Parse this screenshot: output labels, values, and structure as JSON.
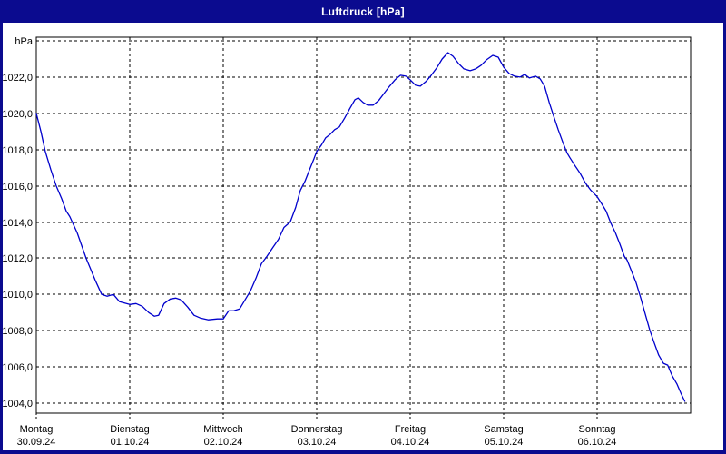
{
  "window": {
    "title": "Luftdruck [hPa]"
  },
  "colors": {
    "frame": "#0b0b8f",
    "title_text": "#ffffff",
    "plot_background": "#ffffff",
    "grid": "#000000",
    "axis_text": "#000000",
    "curve": "#0000cc"
  },
  "chart_data": {
    "type": "line",
    "title": "Luftdruck [hPa]",
    "unit": "hPa",
    "grid": "dashed",
    "legend": "none",
    "ylim_gridlines": [
      1004,
      1024
    ],
    "y_ticks": [
      {
        "value": 1024,
        "label": "hPa"
      },
      {
        "value": 1022,
        "label": "1022,0"
      },
      {
        "value": 1020,
        "label": "1020,0"
      },
      {
        "value": 1018,
        "label": "1018,0"
      },
      {
        "value": 1016,
        "label": "1016,0"
      },
      {
        "value": 1014,
        "label": "1014,0"
      },
      {
        "value": 1012,
        "label": "1012,0"
      },
      {
        "value": 1010,
        "label": "1010,0"
      },
      {
        "value": 1008,
        "label": "1008,0"
      },
      {
        "value": 1006,
        "label": "1006,0"
      },
      {
        "value": 1004,
        "label": "1004,0"
      }
    ],
    "x_days": [
      {
        "name": "Montag",
        "date": "30.09.24"
      },
      {
        "name": "Dienstag",
        "date": "01.10.24"
      },
      {
        "name": "Mittwoch",
        "date": "02.10.24"
      },
      {
        "name": "Donnerstag",
        "date": "03.10.24"
      },
      {
        "name": "Freitag",
        "date": "04.10.24"
      },
      {
        "name": "Samstag",
        "date": "05.10.24"
      },
      {
        "name": "Sonntag",
        "date": "06.10.24"
      }
    ],
    "x_axis_note": "hours since Montag 00:00, 7 days total (168 h)",
    "series": [
      {
        "name": "Luftdruck",
        "unit": "hPa",
        "points": [
          [
            0,
            1020.0
          ],
          [
            1.2,
            1019.0
          ],
          [
            2.3,
            1017.9
          ],
          [
            3.7,
            1016.9
          ],
          [
            5.1,
            1016.0
          ],
          [
            6.5,
            1015.3
          ],
          [
            7.7,
            1014.6
          ],
          [
            8.6,
            1014.3
          ],
          [
            10.5,
            1013.4
          ],
          [
            12.8,
            1012.0
          ],
          [
            15.1,
            1010.8
          ],
          [
            16.8,
            1010.0
          ],
          [
            18.2,
            1009.9
          ],
          [
            19.8,
            1010.0
          ],
          [
            21.4,
            1009.6
          ],
          [
            24,
            1009.45
          ],
          [
            25.6,
            1009.5
          ],
          [
            27.2,
            1009.35
          ],
          [
            28.9,
            1009.0
          ],
          [
            30.3,
            1008.8
          ],
          [
            31.4,
            1008.85
          ],
          [
            32.8,
            1009.5
          ],
          [
            34.4,
            1009.75
          ],
          [
            35.8,
            1009.8
          ],
          [
            37.2,
            1009.7
          ],
          [
            38.9,
            1009.3
          ],
          [
            40.5,
            1008.85
          ],
          [
            42.1,
            1008.7
          ],
          [
            44.2,
            1008.6
          ],
          [
            46.5,
            1008.65
          ],
          [
            48,
            1008.65
          ],
          [
            49.4,
            1009.1
          ],
          [
            50.7,
            1009.1
          ],
          [
            52.2,
            1009.2
          ],
          [
            53.6,
            1009.7
          ],
          [
            55,
            1010.2
          ],
          [
            56.4,
            1010.9
          ],
          [
            57.8,
            1011.7
          ],
          [
            59.2,
            1012.1
          ],
          [
            60.6,
            1012.55
          ],
          [
            62.2,
            1013.05
          ],
          [
            63.6,
            1013.7
          ],
          [
            65.2,
            1014.0
          ],
          [
            66.6,
            1014.8
          ],
          [
            67.8,
            1015.75
          ],
          [
            69,
            1016.25
          ],
          [
            70.1,
            1016.85
          ],
          [
            71.3,
            1017.5
          ],
          [
            72,
            1017.9
          ],
          [
            73.2,
            1018.25
          ],
          [
            74.3,
            1018.65
          ],
          [
            75.5,
            1018.85
          ],
          [
            76.6,
            1019.1
          ],
          [
            77.8,
            1019.25
          ],
          [
            79.2,
            1019.75
          ],
          [
            80.6,
            1020.3
          ],
          [
            81.8,
            1020.75
          ],
          [
            82.7,
            1020.85
          ],
          [
            83.9,
            1020.6
          ],
          [
            85.1,
            1020.45
          ],
          [
            86.5,
            1020.45
          ],
          [
            87.9,
            1020.7
          ],
          [
            89.3,
            1021.1
          ],
          [
            90.7,
            1021.5
          ],
          [
            92.1,
            1021.85
          ],
          [
            93.5,
            1022.1
          ],
          [
            94.9,
            1022.05
          ],
          [
            96,
            1021.85
          ],
          [
            97.4,
            1021.55
          ],
          [
            98.6,
            1021.5
          ],
          [
            100,
            1021.75
          ],
          [
            101.4,
            1022.1
          ],
          [
            102.8,
            1022.5
          ],
          [
            104.2,
            1023.0
          ],
          [
            105.7,
            1023.35
          ],
          [
            107,
            1023.15
          ],
          [
            108.4,
            1022.75
          ],
          [
            109.8,
            1022.45
          ],
          [
            111.4,
            1022.35
          ],
          [
            112.8,
            1022.45
          ],
          [
            114.2,
            1022.65
          ],
          [
            115.6,
            1022.95
          ],
          [
            117.2,
            1023.2
          ],
          [
            118.6,
            1023.1
          ],
          [
            120,
            1022.55
          ],
          [
            121.4,
            1022.2
          ],
          [
            122.8,
            1022.05
          ],
          [
            124.2,
            1022.0
          ],
          [
            125.4,
            1022.15
          ],
          [
            126.6,
            1021.95
          ],
          [
            128.2,
            1022.05
          ],
          [
            129.4,
            1021.9
          ],
          [
            130.5,
            1021.5
          ],
          [
            131.7,
            1020.6
          ],
          [
            132.9,
            1019.8
          ],
          [
            134,
            1019.1
          ],
          [
            135.2,
            1018.4
          ],
          [
            136.3,
            1017.8
          ],
          [
            137,
            1017.55
          ],
          [
            138.2,
            1017.15
          ],
          [
            139.6,
            1016.7
          ],
          [
            141,
            1016.15
          ],
          [
            142.4,
            1015.75
          ],
          [
            144,
            1015.4
          ],
          [
            145.2,
            1015.0
          ],
          [
            146.3,
            1014.6
          ],
          [
            147.5,
            1013.95
          ],
          [
            148.7,
            1013.4
          ],
          [
            149.8,
            1012.8
          ],
          [
            151,
            1012.1
          ],
          [
            151.7,
            1011.9
          ],
          [
            152.8,
            1011.3
          ],
          [
            154,
            1010.65
          ],
          [
            155.2,
            1009.8
          ],
          [
            156.3,
            1008.95
          ],
          [
            157.5,
            1008.05
          ],
          [
            158.7,
            1007.3
          ],
          [
            159.8,
            1006.65
          ],
          [
            161,
            1006.2
          ],
          [
            162.1,
            1006.1
          ],
          [
            163.3,
            1005.5
          ],
          [
            164.5,
            1005.05
          ],
          [
            165.6,
            1004.5
          ],
          [
            166.5,
            1004.1
          ]
        ]
      }
    ]
  }
}
